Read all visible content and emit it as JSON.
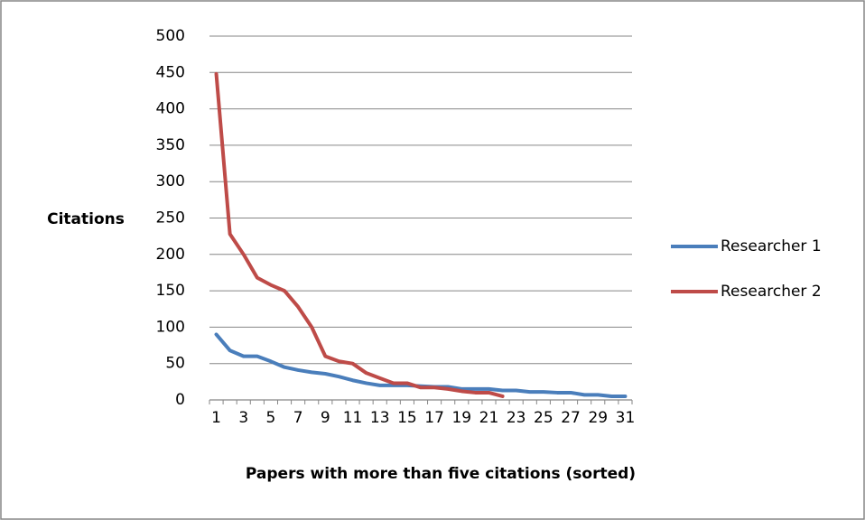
{
  "chart_data": {
    "type": "line",
    "xlabel": "Papers with more than five citations (sorted)",
    "ylabel": "Citations",
    "categories": [
      "1",
      null,
      "3",
      null,
      "5",
      null,
      "7",
      null,
      "9",
      null,
      "11",
      null,
      "13",
      null,
      "15",
      null,
      "17",
      null,
      "19",
      null,
      "21",
      null,
      "23",
      null,
      "25",
      null,
      "27",
      null,
      "29",
      null,
      "31"
    ],
    "series": [
      {
        "name": "Researcher 1",
        "color": "#4a7ebb",
        "values": [
          90,
          68,
          60,
          60,
          53,
          45,
          41,
          38,
          36,
          32,
          27,
          23,
          20,
          20,
          20,
          19,
          18,
          18,
          15,
          15,
          15,
          13,
          13,
          11,
          11,
          10,
          10,
          7,
          7,
          5,
          5
        ]
      },
      {
        "name": "Researcher 2",
        "color": "#be4b48",
        "values": [
          448,
          228,
          200,
          168,
          158,
          150,
          128,
          100,
          60,
          53,
          50,
          37,
          30,
          23,
          23,
          17,
          17,
          15,
          12,
          10,
          10,
          5,
          null,
          null,
          null,
          null,
          null,
          null,
          null,
          null,
          null
        ]
      }
    ],
    "ylim": [
      0,
      500
    ],
    "yticks": [
      0,
      50,
      100,
      150,
      200,
      250,
      300,
      350,
      400,
      450,
      500
    ],
    "grid": true,
    "legend": "right"
  }
}
